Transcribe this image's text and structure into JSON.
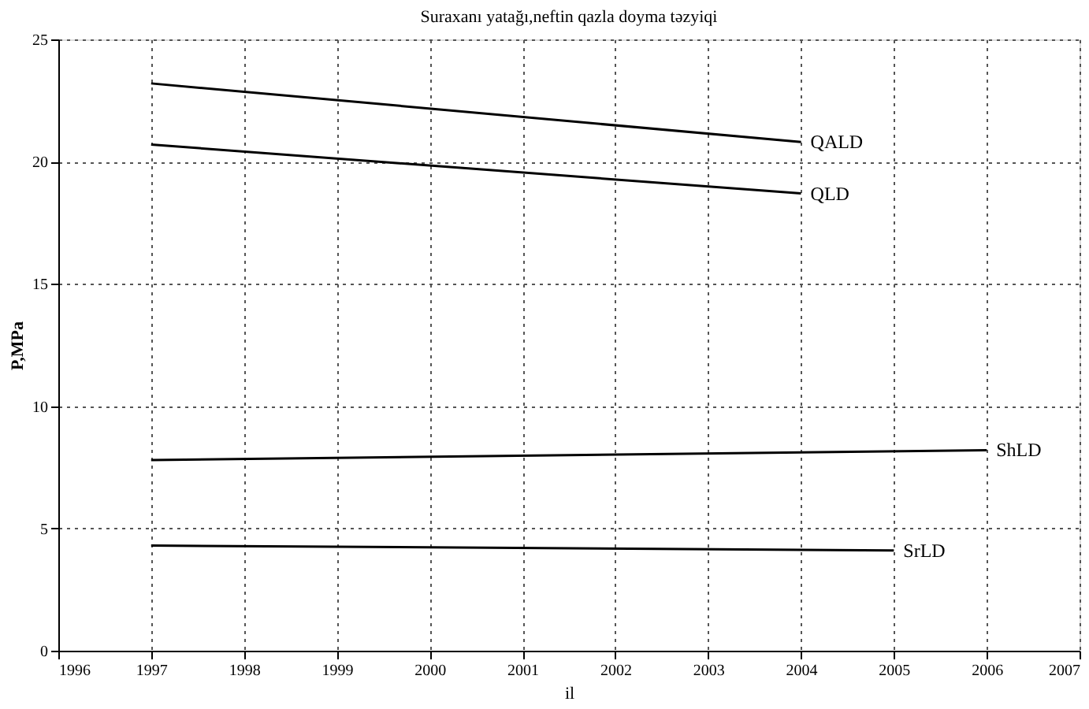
{
  "chart_data": {
    "type": "line",
    "title": "Suraxanı yatağı,neftin qazla doyma təzyiqi",
    "xlabel": "il",
    "ylabel": "P,MPa",
    "xlim": [
      1996,
      2007
    ],
    "xticks": [
      1996,
      1997,
      1998,
      1999,
      2000,
      2001,
      2002,
      2003,
      2004,
      2005,
      2006,
      2007
    ],
    "ylim": [
      0,
      25
    ],
    "yticks": [
      0,
      5,
      10,
      15,
      20,
      25
    ],
    "grid": true,
    "marker": "none",
    "line_style": "solid",
    "series": [
      {
        "name": "QALD",
        "color": "#000000",
        "x": [
          1997,
          2004
        ],
        "values": [
          23.2,
          20.8
        ]
      },
      {
        "name": "QLD",
        "color": "#000000",
        "x": [
          1997,
          2004
        ],
        "values": [
          20.7,
          18.7
        ]
      },
      {
        "name": "ShLD",
        "color": "#000000",
        "x": [
          1997,
          2006
        ],
        "values": [
          7.8,
          8.2
        ]
      },
      {
        "name": "SrLD",
        "color": "#000000",
        "x": [
          1997,
          2005
        ],
        "values": [
          4.3,
          4.1
        ]
      }
    ]
  }
}
